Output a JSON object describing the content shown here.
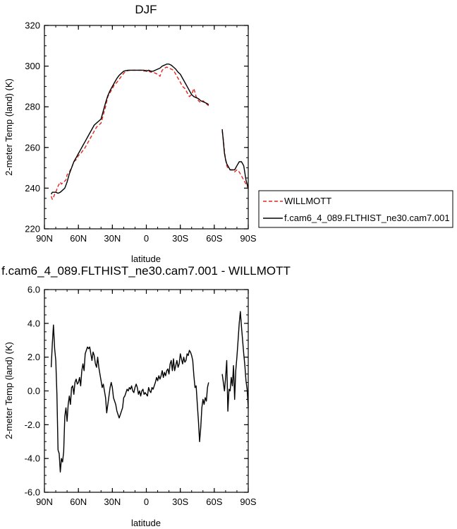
{
  "chart_data": [
    {
      "type": "line",
      "title": "DJF",
      "xlabel": "latitude",
      "ylabel": "2-meter Temp (land) (K)",
      "xlim": [
        90,
        -90
      ],
      "ylim": [
        220,
        320
      ],
      "x_ticks": [
        90,
        60,
        30,
        0,
        -30,
        -60,
        -90
      ],
      "x_tick_labels": [
        "90N",
        "60N",
        "30N",
        "0",
        "30S",
        "60S",
        "90S"
      ],
      "y_ticks": [
        220,
        240,
        260,
        280,
        300,
        320
      ],
      "y_tick_labels": [
        "220",
        "240",
        "260",
        "280",
        "300",
        "320"
      ],
      "legend_position": "right",
      "legend": [
        {
          "label": "WILLMOTT",
          "color": "#e3261f",
          "dash": true
        },
        {
          "label": "f.cam6_4_089.FLTHIST_ne30.cam7.001",
          "color": "#000000",
          "dash": false
        }
      ],
      "series": [
        {
          "name": "WILLMOTT",
          "color": "#e3261f",
          "dash": true,
          "segments": [
            {
              "x": [
                84,
                83,
                82,
                81,
                80,
                78,
                76,
                75,
                73,
                71,
                70,
                68,
                66,
                64,
                62,
                60,
                58,
                56,
                54,
                52,
                50,
                48,
                46,
                44,
                42,
                40,
                38,
                36,
                34,
                32,
                30,
                28,
                26,
                24,
                22,
                20,
                18,
                16,
                14,
                12,
                10,
                8,
                6,
                4,
                2,
                0,
                -2,
                -4,
                -6,
                -8,
                -10,
                -12,
                -14,
                -16,
                -18,
                -20,
                -22,
                -24,
                -26,
                -28,
                -30,
                -32,
                -34,
                -36,
                -38,
                -40,
                -42,
                -44,
                -46,
                -48,
                -50,
                -52,
                -54,
                -55
              ],
              "y": [
                236,
                234.5,
                235.5,
                237,
                238,
                241,
                243,
                242,
                243,
                244,
                246.5,
                248,
                250,
                253,
                254,
                256,
                257,
                258.5,
                260,
                262,
                264,
                266,
                268,
                270,
                271,
                272,
                276,
                280,
                285,
                287,
                289,
                291,
                292,
                293.5,
                295,
                296.5,
                297.5,
                297.8,
                298,
                298,
                298,
                298,
                298,
                298,
                297.5,
                298,
                297.5,
                297,
                297,
                296.5,
                296,
                295,
                298,
                299,
                299.5,
                299,
                298.5,
                298,
                296,
                294,
                292,
                290,
                289,
                287,
                285,
                286,
                289,
                285,
                283,
                282,
                283,
                282,
                281,
                280.5
              ]
            },
            {
              "x": [
                -67,
                -68,
                -69,
                -70,
                -71,
                -72,
                -74,
                -76,
                -78,
                -80,
                -82,
                -84,
                -86,
                -88,
                -90
              ],
              "y": [
                268,
                264,
                258,
                254,
                251,
                250,
                249,
                249,
                248,
                249,
                248,
                246,
                244,
                242,
                240
              ]
            }
          ]
        },
        {
          "name": "f.cam6_4_089.FLTHIST_ne30.cam7.001",
          "color": "#000000",
          "dash": false,
          "segments": [
            {
              "x": [
                84,
                83,
                82,
                80,
                78,
                76,
                74,
                72,
                70,
                68,
                66,
                64,
                62,
                60,
                58,
                56,
                54,
                52,
                50,
                48,
                46,
                44,
                42,
                40,
                38,
                36,
                34,
                32,
                30,
                28,
                26,
                24,
                22,
                20,
                18,
                16,
                14,
                12,
                10,
                8,
                6,
                4,
                2,
                0,
                -2,
                -4,
                -6,
                -8,
                -10,
                -12,
                -14,
                -16,
                -18,
                -20,
                -22,
                -24,
                -26,
                -28,
                -30,
                -32,
                -34,
                -36,
                -38,
                -40,
                -42,
                -44,
                -46,
                -48,
                -50,
                -52,
                -54,
                -55
              ],
              "y": [
                237,
                238,
                238,
                238,
                237.5,
                238,
                239,
                240,
                243,
                247,
                250,
                253,
                255,
                257,
                259,
                261,
                263,
                265,
                267,
                269,
                271,
                272,
                273,
                274,
                278,
                282,
                285.5,
                288,
                290,
                292,
                294,
                295.5,
                296.5,
                297.5,
                297.8,
                298,
                298,
                298,
                298,
                298,
                298,
                298,
                298,
                297.5,
                298,
                297.5,
                297.5,
                298,
                298.5,
                299,
                300,
                300.5,
                301,
                301,
                300.5,
                299.5,
                298.5,
                297,
                296,
                294,
                292,
                290,
                288,
                286,
                285,
                284.5,
                284,
                283,
                282.5,
                282,
                281.5,
                281
              ]
            },
            {
              "x": [
                -67,
                -68,
                -69,
                -70,
                -71,
                -72,
                -74,
                -76,
                -78,
                -80,
                -82,
                -84,
                -86,
                -88,
                -90
              ],
              "y": [
                269,
                263,
                257,
                254,
                252,
                251,
                249,
                249,
                249,
                251,
                253,
                253,
                251,
                244,
                240
              ]
            }
          ]
        }
      ]
    },
    {
      "type": "line",
      "title": "f.cam6_4_089.FLTHIST_ne30.cam7.001 - WILLMOTT",
      "xlabel": "latitude",
      "ylabel": "2-meter Temp (land) (K)",
      "xlim": [
        90,
        -90
      ],
      "ylim": [
        -6,
        6
      ],
      "x_ticks": [
        90,
        60,
        30,
        0,
        -30,
        -60,
        -90
      ],
      "x_tick_labels": [
        "90N",
        "60N",
        "30N",
        "0",
        "30S",
        "60S",
        "90S"
      ],
      "y_ticks": [
        -6,
        -4,
        -2,
        0,
        2,
        4,
        6
      ],
      "y_tick_labels": [
        "-6.0",
        "-4.0",
        "-2.0",
        "0.0",
        "2.0",
        "4.0",
        "6.0"
      ],
      "series": [
        {
          "color": "#000000",
          "dash": false,
          "segments": [
            {
              "x": [
                84,
                83,
                82,
                81,
                80,
                79,
                78,
                77,
                76,
                75,
                74,
                73,
                72,
                71,
                70,
                69,
                68,
                67,
                66,
                65,
                64,
                63,
                62,
                61,
                60,
                59,
                58,
                57,
                56,
                55,
                54,
                53,
                52,
                51,
                50,
                49,
                48,
                47,
                46,
                45,
                44,
                43,
                42,
                41,
                40,
                39,
                38,
                37,
                36,
                35,
                34,
                33,
                32,
                31,
                30,
                29,
                28,
                27,
                26,
                25,
                24,
                23,
                22,
                21,
                20,
                19,
                18,
                17,
                16,
                15,
                14,
                13,
                12,
                11,
                10,
                9,
                8,
                7,
                6,
                5,
                4,
                3,
                2,
                1,
                0,
                -1,
                -2,
                -3,
                -4,
                -5,
                -6,
                -7,
                -8,
                -9,
                -10,
                -11,
                -12,
                -13,
                -14,
                -15,
                -16,
                -17,
                -18,
                -19,
                -20,
                -21,
                -22,
                -23,
                -24,
                -25,
                -26,
                -27,
                -28,
                -29,
                -30,
                -31,
                -32,
                -33,
                -34,
                -35,
                -36,
                -37,
                -38,
                -39,
                -40,
                -41,
                -42,
                -43,
                -44,
                -45,
                -46,
                -47,
                -48,
                -49,
                -50,
                -51,
                -52,
                -53,
                -54,
                -55
              ],
              "y": [
                1.4,
                2.8,
                3.9,
                2.5,
                1.8,
                -0.2,
                -3.5,
                -3.7,
                -4.8,
                -4.0,
                -4.2,
                -3.6,
                -1.5,
                -1.0,
                -1.8,
                -0.8,
                -0.3,
                -0.8,
                0.2,
                0.3,
                -0.2,
                0.5,
                0.7,
                0.4,
                0.5,
                0.8,
                0.3,
                1.2,
                1.6,
                1.2,
                2.2,
                2.4,
                2.6,
                2.5,
                2.6,
                2.2,
                1.8,
                2.3,
                2.1,
                1.6,
                1.4,
                2.0,
                1.4,
                1.0,
                0.6,
                0.2,
                0.4,
                0.0,
                -0.4,
                -1.3,
                -0.8,
                -0.3,
                0.2,
                0.5,
                0.2,
                -0.4,
                -0.6,
                -0.8,
                -1.2,
                -1.4,
                -1.6,
                -1.4,
                -1.2,
                -1.0,
                -0.4,
                -0.3,
                -0.1,
                0.1,
                0.0,
                0.2,
                0.1,
                0.3,
                0.0,
                -0.1,
                0.2,
                0.4,
                0.2,
                -0.2,
                0.0,
                -0.3,
                0.0,
                0.1,
                -0.2,
                -0.1,
                -0.2,
                -0.3,
                0.2,
                0.0,
                -0.1,
                0.2,
                0.1,
                0.3,
                0.5,
                0.8,
                0.6,
                0.9,
                0.7,
                0.9,
                1.2,
                0.8,
                1.1,
                0.9,
                1.2,
                1.3,
                1.0,
                1.6,
                1.8,
                1.2,
                1.9,
                1.2,
                1.5,
                1.8,
                1.4,
                1.6,
                2.2,
                1.9,
                1.6,
                2.0,
                1.7,
                1.8,
                2.2,
                2.1,
                2.4,
                2.3,
                2.1,
                1.8,
                0.9,
                0.2,
                0.3,
                -0.8,
                -1.8,
                -3.0,
                -2.2,
                -1.0,
                -0.5,
                -0.8,
                -0.4,
                -0.6,
                0.2,
                0.5
              ]
            },
            {
              "x": [
                -67,
                -68,
                -69,
                -70,
                -71,
                -72,
                -73,
                -74,
                -75,
                -76,
                -77,
                -78,
                -79,
                -80,
                -81,
                -82,
                -83,
                -84,
                -85,
                -86,
                -87,
                -88,
                -89,
                -90
              ],
              "y": [
                1.0,
                0.5,
                0.0,
                0.8,
                1.8,
                -1.2,
                0.1,
                0.0,
                0.8,
                0.3,
                1.5,
                -0.5,
                1.2,
                2.0,
                3.0,
                4.0,
                4.7,
                3.8,
                3.0,
                2.2,
                1.5,
                0.6,
                0.1,
                -1.0
              ]
            }
          ]
        }
      ]
    }
  ]
}
